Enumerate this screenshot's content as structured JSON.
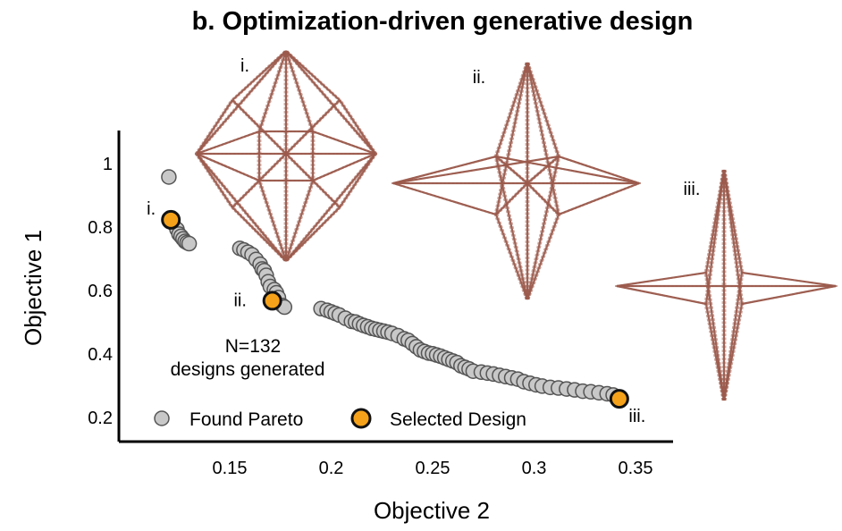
{
  "colors": {
    "found": "#c8c8c8",
    "found_stroke": "#555555",
    "selected": "#f5a21a",
    "selected_stroke": "#111111",
    "structure": "#9b5a4c",
    "axis": "#000000"
  },
  "chart_data": {
    "type": "scatter",
    "title": "b. Optimization-driven generative design",
    "xlabel": "Objective 2",
    "ylabel": "Objective 1",
    "xlim": [
      0.105,
      0.37
    ],
    "ylim": [
      0.12,
      1.12
    ],
    "xticks": [
      "0.15",
      "0.2",
      "0.25",
      "0.3",
      "0.35"
    ],
    "yticks": [
      "0.2",
      "0.4",
      "0.6",
      "0.8",
      "1"
    ],
    "grid": false,
    "legend": {
      "position": "bottom",
      "entries": [
        "Found Pareto",
        "Selected Design"
      ]
    },
    "annotation": [
      "N=132",
      "designs generated"
    ],
    "series": [
      {
        "name": "Found Pareto",
        "points": [
          [
            0.12,
            0.955
          ],
          [
            0.122,
            0.81
          ],
          [
            0.124,
            0.79
          ],
          [
            0.125,
            0.775
          ],
          [
            0.126,
            0.768
          ],
          [
            0.127,
            0.76
          ],
          [
            0.128,
            0.752
          ],
          [
            0.129,
            0.748
          ],
          [
            0.13,
            0.745
          ],
          [
            0.155,
            0.73
          ],
          [
            0.157,
            0.725
          ],
          [
            0.159,
            0.718
          ],
          [
            0.161,
            0.71
          ],
          [
            0.163,
            0.695
          ],
          [
            0.165,
            0.68
          ],
          [
            0.166,
            0.665
          ],
          [
            0.167,
            0.66
          ],
          [
            0.168,
            0.645
          ],
          [
            0.169,
            0.625
          ],
          [
            0.17,
            0.61
          ],
          [
            0.172,
            0.6
          ],
          [
            0.173,
            0.59
          ],
          [
            0.174,
            0.575
          ],
          [
            0.176,
            0.55
          ],
          [
            0.177,
            0.545
          ],
          [
            0.195,
            0.54
          ],
          [
            0.198,
            0.535
          ],
          [
            0.2,
            0.53
          ],
          [
            0.202,
            0.525
          ],
          [
            0.204,
            0.52
          ],
          [
            0.207,
            0.51
          ],
          [
            0.21,
            0.5
          ],
          [
            0.212,
            0.498
          ],
          [
            0.214,
            0.492
          ],
          [
            0.216,
            0.487
          ],
          [
            0.218,
            0.483
          ],
          [
            0.22,
            0.478
          ],
          [
            0.222,
            0.475
          ],
          [
            0.224,
            0.472
          ],
          [
            0.226,
            0.469
          ],
          [
            0.228,
            0.466
          ],
          [
            0.23,
            0.462
          ],
          [
            0.233,
            0.455
          ],
          [
            0.236,
            0.445
          ],
          [
            0.238,
            0.44
          ],
          [
            0.24,
            0.43
          ],
          [
            0.242,
            0.42
          ],
          [
            0.244,
            0.41
          ],
          [
            0.246,
            0.405
          ],
          [
            0.248,
            0.4
          ],
          [
            0.25,
            0.398
          ],
          [
            0.252,
            0.394
          ],
          [
            0.254,
            0.39
          ],
          [
            0.256,
            0.385
          ],
          [
            0.258,
            0.38
          ],
          [
            0.26,
            0.375
          ],
          [
            0.262,
            0.37
          ],
          [
            0.264,
            0.36
          ],
          [
            0.266,
            0.355
          ],
          [
            0.268,
            0.35
          ],
          [
            0.27,
            0.343
          ],
          [
            0.274,
            0.34
          ],
          [
            0.277,
            0.337
          ],
          [
            0.28,
            0.334
          ],
          [
            0.283,
            0.33
          ],
          [
            0.286,
            0.326
          ],
          [
            0.289,
            0.322
          ],
          [
            0.292,
            0.318
          ],
          [
            0.295,
            0.31
          ],
          [
            0.298,
            0.305
          ],
          [
            0.301,
            0.3
          ],
          [
            0.304,
            0.296
          ],
          [
            0.308,
            0.292
          ],
          [
            0.312,
            0.29
          ],
          [
            0.316,
            0.287
          ],
          [
            0.32,
            0.284
          ],
          [
            0.324,
            0.28
          ],
          [
            0.328,
            0.278
          ],
          [
            0.332,
            0.275
          ],
          [
            0.336,
            0.272
          ],
          [
            0.339,
            0.268
          ]
        ]
      },
      {
        "name": "Selected Design",
        "points": [
          {
            "x": 0.121,
            "y": 0.82,
            "label": "i."
          },
          {
            "x": 0.171,
            "y": 0.565,
            "label": "ii."
          },
          {
            "x": 0.342,
            "y": 0.256,
            "label": "iii."
          }
        ]
      }
    ],
    "inset_labels": [
      "i.",
      "ii.",
      "iii."
    ]
  }
}
